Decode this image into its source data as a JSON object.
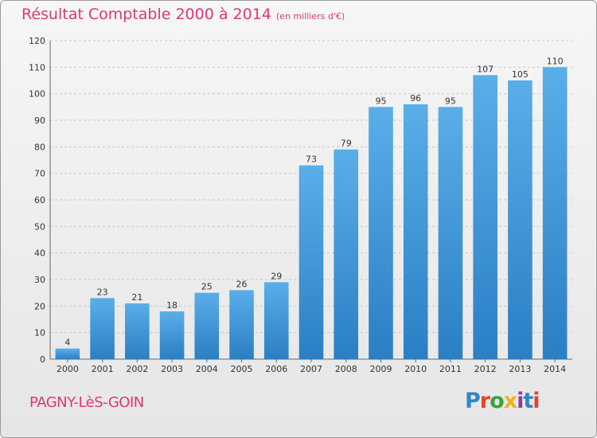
{
  "title": "Résultat Comptable 2000 à 2014",
  "subtitle": "(en milliers d'€)",
  "commune": "PAGNY-LèS-GOIN",
  "logo_text": "Proxiti",
  "logo_colors": [
    "#2e86c8",
    "#e8412c",
    "#3aa335",
    "#f2b01e",
    "#8d3fa0",
    "#2e86c8",
    "#e8412c"
  ],
  "colors": {
    "title": "#d93a77",
    "bar_light": "#5aaee8",
    "bar_dark": "#2a7fc4",
    "grid": "#c8c8c8",
    "axis_text": "#333333"
  },
  "chart_data": {
    "type": "bar",
    "categories": [
      "2000",
      "2001",
      "2002",
      "2003",
      "2004",
      "2005",
      "2006",
      "2007",
      "2008",
      "2009",
      "2010",
      "2011",
      "2012",
      "2013",
      "2014"
    ],
    "values": [
      4,
      23,
      21,
      18,
      25,
      26,
      29,
      73,
      79,
      95,
      96,
      95,
      107,
      105,
      110
    ],
    "ylim": [
      0,
      120
    ],
    "yticks": [
      0,
      10,
      20,
      30,
      40,
      50,
      60,
      70,
      80,
      90,
      100,
      110,
      120
    ],
    "grid": true,
    "data_labels": true
  }
}
